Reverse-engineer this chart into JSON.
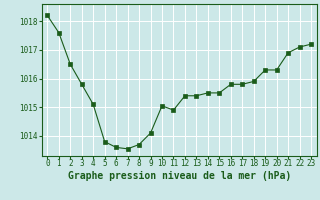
{
  "x": [
    0,
    1,
    2,
    3,
    4,
    5,
    6,
    7,
    8,
    9,
    10,
    11,
    12,
    13,
    14,
    15,
    16,
    17,
    18,
    19,
    20,
    21,
    22,
    23
  ],
  "y": [
    1018.2,
    1017.6,
    1016.5,
    1015.8,
    1015.1,
    1013.8,
    1013.6,
    1013.55,
    1013.7,
    1014.1,
    1015.05,
    1014.9,
    1015.4,
    1015.4,
    1015.5,
    1015.5,
    1015.8,
    1015.8,
    1015.9,
    1016.3,
    1016.3,
    1016.9,
    1017.1,
    1017.2
  ],
  "line_color": "#1a5c1a",
  "marker": "s",
  "marker_size": 2.5,
  "bg_color": "#cce8e8",
  "grid_color": "#ffffff",
  "xlabel": "Graphe pression niveau de la mer (hPa)",
  "xlabel_color": "#1a5c1a",
  "xlabel_fontsize": 7,
  "tick_color": "#1a5c1a",
  "tick_fontsize": 5.5,
  "ylim": [
    1013.3,
    1018.6
  ],
  "yticks": [
    1014,
    1015,
    1016,
    1017,
    1018
  ],
  "xlim": [
    -0.5,
    23.5
  ]
}
